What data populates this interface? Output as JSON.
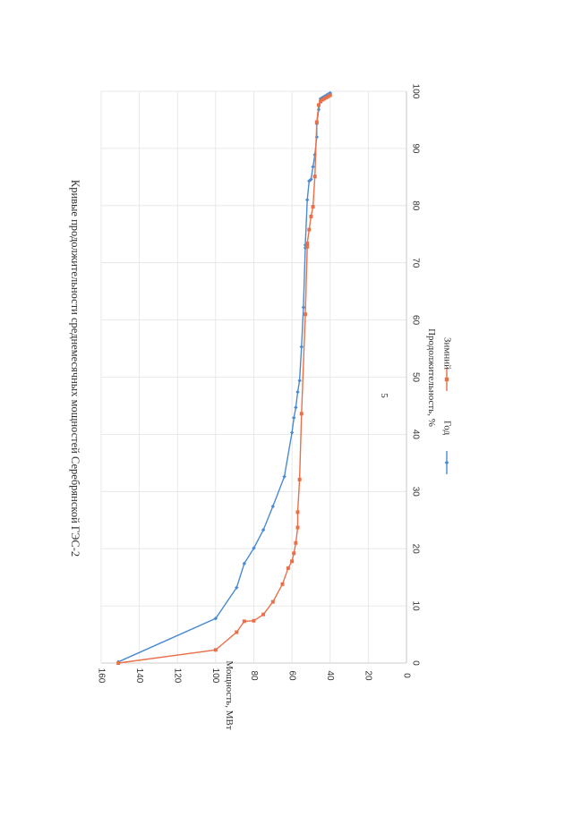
{
  "page": {
    "number": "5"
  },
  "chart_data": {
    "type": "line",
    "title": "Кривые продолжительности среднемесячных мощностей Серебрянской ГЭС-2",
    "xlabel": "Продолжительность, %",
    "ylabel": "Мощность, МВт",
    "xlim": [
      0,
      100
    ],
    "ylim": [
      0,
      160
    ],
    "x_ticks": [
      "0",
      "10",
      "20",
      "30",
      "40",
      "50",
      "60",
      "70",
      "80",
      "90",
      "100"
    ],
    "y_ticks": [
      "0",
      "20",
      "40",
      "60",
      "80",
      "100",
      "120",
      "140",
      "160"
    ],
    "grid": true,
    "legend_position": "bottom",
    "series": [
      {
        "name": "Год",
        "color": "#4a8bd0",
        "points": [
          [
            0.2,
            151
          ],
          [
            7.8,
            100
          ],
          [
            13.2,
            89
          ],
          [
            17.4,
            85
          ],
          [
            20.1,
            80
          ],
          [
            23.3,
            75
          ],
          [
            27.4,
            70
          ],
          [
            32.6,
            64
          ],
          [
            40.3,
            60
          ],
          [
            42.9,
            59
          ],
          [
            44.7,
            58
          ],
          [
            47.4,
            57
          ],
          [
            49.4,
            56
          ],
          [
            55.3,
            55
          ],
          [
            62.2,
            54
          ],
          [
            72.6,
            53
          ],
          [
            73.1,
            53
          ],
          [
            81,
            52
          ],
          [
            84.3,
            51
          ],
          [
            84.6,
            50
          ],
          [
            86.8,
            49
          ],
          [
            88.9,
            48
          ],
          [
            92,
            47
          ],
          [
            94.3,
            47
          ],
          [
            96.8,
            46
          ],
          [
            98.7,
            45
          ],
          [
            98.9,
            44
          ],
          [
            99.1,
            43
          ],
          [
            99.3,
            42
          ],
          [
            99.5,
            41
          ],
          [
            99.7,
            40
          ]
        ]
      },
      {
        "name": "Зимний",
        "color": "#e8714a",
        "points": [
          [
            0,
            151
          ],
          [
            2.3,
            100
          ],
          [
            5.4,
            89
          ],
          [
            7.3,
            85
          ],
          [
            7.4,
            80
          ],
          [
            8.5,
            75
          ],
          [
            10.7,
            70
          ],
          [
            13.8,
            65
          ],
          [
            16.6,
            62
          ],
          [
            17.8,
            60
          ],
          [
            19.2,
            59
          ],
          [
            21,
            58
          ],
          [
            23.7,
            57
          ],
          [
            26.4,
            57
          ],
          [
            32.1,
            56
          ],
          [
            43.6,
            55
          ],
          [
            61,
            53
          ],
          [
            72.8,
            52
          ],
          [
            73.4,
            52
          ],
          [
            75.8,
            51
          ],
          [
            78.1,
            50
          ],
          [
            79.8,
            49
          ],
          [
            85.1,
            48
          ],
          [
            94.6,
            47
          ],
          [
            97.6,
            46
          ],
          [
            98.2,
            45
          ],
          [
            98.5,
            44
          ],
          [
            98.7,
            43
          ],
          [
            98.9,
            42
          ],
          [
            99.1,
            41
          ],
          [
            99.3,
            40
          ]
        ]
      }
    ]
  }
}
